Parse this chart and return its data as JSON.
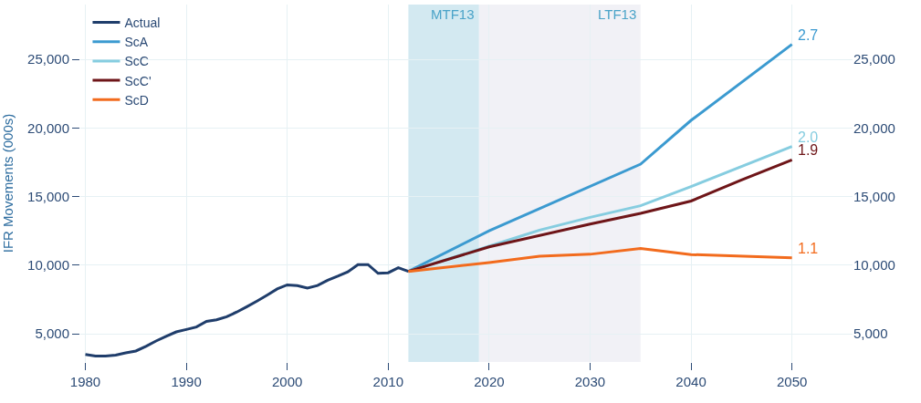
{
  "chart_data": {
    "type": "line",
    "ylabel": "IFR Movements (000s)",
    "xlim": [
      1979.5,
      2056
    ],
    "xticks": [
      1980,
      1990,
      2000,
      2010,
      2020,
      2030,
      2040,
      2050
    ],
    "ylim": [
      2950,
      29000
    ],
    "yticks": [
      {
        "value": 5000,
        "label": "5,000"
      },
      {
        "value": 10000,
        "label": "10,000"
      },
      {
        "value": 15000,
        "label": "15,000"
      },
      {
        "value": 20000,
        "label": "20,000"
      },
      {
        "value": 25000,
        "label": "25,000"
      }
    ],
    "y2lim": [
      2950,
      29000
    ],
    "y2ticks": [
      {
        "value": 5000,
        "label": "5,000"
      },
      {
        "value": 10000,
        "label": "10,000"
      },
      {
        "value": 15000,
        "label": "15,000"
      },
      {
        "value": 20000,
        "label": "20,000"
      },
      {
        "value": 25000,
        "label": "25,000"
      }
    ],
    "grid": true,
    "legend": "top left",
    "series": [
      {
        "name": "Actual",
        "color": "#1f3d6b",
        "x": [
          1980,
          1981,
          1982,
          1983,
          1984,
          1985,
          1986,
          1987,
          1988,
          1989,
          1990,
          1991,
          1992,
          1993,
          1994,
          1995,
          1996,
          1997,
          1998,
          1999,
          2000,
          2001,
          2002,
          2003,
          2004,
          2005,
          2006,
          2007,
          2008,
          2009,
          2010,
          2011,
          2012
        ],
        "values": [
          3500,
          3390,
          3390,
          3450,
          3610,
          3750,
          4090,
          4480,
          4820,
          5140,
          5320,
          5500,
          5910,
          6020,
          6250,
          6590,
          6980,
          7390,
          7820,
          8270,
          8570,
          8520,
          8340,
          8520,
          8910,
          9200,
          9520,
          10050,
          10050,
          9410,
          9450,
          9820,
          9550
        ]
      },
      {
        "name": "ScA",
        "color": "#3b9ad0",
        "x": [
          2012,
          2020,
          2035,
          2040,
          2050
        ],
        "values": [
          9550,
          12510,
          17370,
          20560,
          26100
        ]
      },
      {
        "name": "ScC",
        "color": "#86cde0",
        "x": [
          2012,
          2020,
          2025,
          2030,
          2035,
          2040,
          2050
        ],
        "values": [
          9550,
          11390,
          12560,
          13490,
          14340,
          15730,
          18660
        ]
      },
      {
        "name": "ScC'",
        "color": "#6e1518",
        "x": [
          2012,
          2020,
          2030,
          2035,
          2040,
          2045,
          2050
        ],
        "values": [
          9550,
          11340,
          13000,
          13780,
          14680,
          16220,
          17680
        ]
      },
      {
        "name": "ScD",
        "color": "#f26b1d",
        "x": [
          2012,
          2020,
          2025,
          2030,
          2035,
          2040,
          2050
        ],
        "values": [
          9550,
          10200,
          10660,
          10800,
          11220,
          10780,
          10540
        ]
      }
    ],
    "bands": [
      {
        "axis": "x",
        "from": 2012,
        "to": 2019,
        "label": "MTF13",
        "color": "#d3e9f1"
      },
      {
        "axis": "x",
        "from": 2019,
        "to": 2035,
        "label": "LTF13",
        "color": "#f1f1f6"
      }
    ],
    "annotations": [
      "2.7",
      "2.0",
      "1.9",
      "1.1"
    ]
  }
}
